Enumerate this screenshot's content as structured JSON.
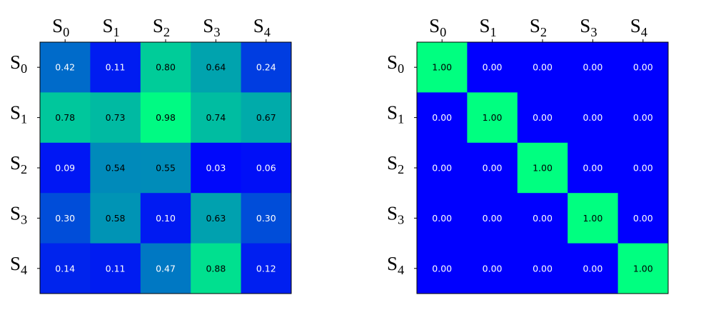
{
  "chart_data": [
    {
      "type": "heatmap",
      "x_labels": [
        {
          "main": "S",
          "sub": "0"
        },
        {
          "main": "S",
          "sub": "1"
        },
        {
          "main": "S",
          "sub": "2"
        },
        {
          "main": "S",
          "sub": "3"
        },
        {
          "main": "S",
          "sub": "4"
        }
      ],
      "y_labels": [
        {
          "main": "S",
          "sub": "0"
        },
        {
          "main": "S",
          "sub": "1"
        },
        {
          "main": "S",
          "sub": "2"
        },
        {
          "main": "S",
          "sub": "3"
        },
        {
          "main": "S",
          "sub": "4"
        }
      ],
      "values": [
        [
          0.42,
          0.11,
          0.8,
          0.64,
          0.24
        ],
        [
          0.78,
          0.73,
          0.98,
          0.74,
          0.67
        ],
        [
          0.09,
          0.54,
          0.55,
          0.03,
          0.06
        ],
        [
          0.3,
          0.58,
          0.1,
          0.63,
          0.3
        ],
        [
          0.14,
          0.11,
          0.47,
          0.88,
          0.12
        ]
      ],
      "colormap": [
        "#0000ff",
        "#00ff80"
      ],
      "value_range": [
        0,
        1
      ],
      "x_tick_position": "top",
      "grid": false
    },
    {
      "type": "heatmap",
      "x_labels": [
        {
          "main": "S",
          "sub": "0"
        },
        {
          "main": "S",
          "sub": "1"
        },
        {
          "main": "S",
          "sub": "2"
        },
        {
          "main": "S",
          "sub": "3"
        },
        {
          "main": "S",
          "sub": "4"
        }
      ],
      "y_labels": [
        {
          "main": "S",
          "sub": "0"
        },
        {
          "main": "S",
          "sub": "1"
        },
        {
          "main": "S",
          "sub": "2"
        },
        {
          "main": "S",
          "sub": "3"
        },
        {
          "main": "S",
          "sub": "4"
        }
      ],
      "values": [
        [
          1.0,
          0.0,
          0.0,
          0.0,
          0.0
        ],
        [
          0.0,
          1.0,
          0.0,
          0.0,
          0.0
        ],
        [
          0.0,
          0.0,
          1.0,
          0.0,
          0.0
        ],
        [
          0.0,
          0.0,
          0.0,
          1.0,
          0.0
        ],
        [
          0.0,
          0.0,
          0.0,
          0.0,
          1.0
        ]
      ],
      "colormap": [
        "#0000ff",
        "#00ff80"
      ],
      "value_range": [
        0,
        1
      ],
      "x_tick_position": "top",
      "grid": false
    }
  ]
}
